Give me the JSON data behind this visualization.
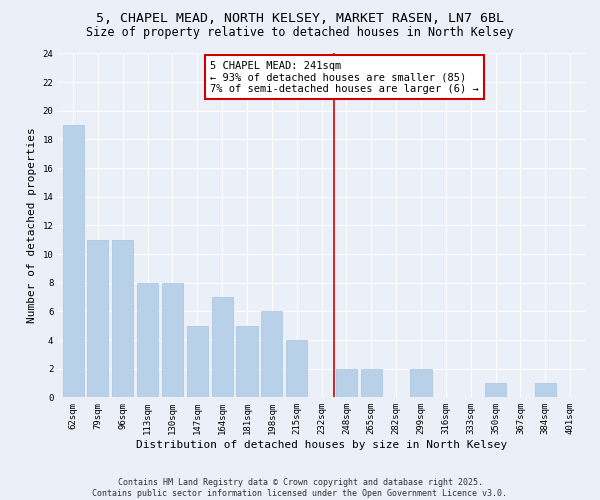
{
  "title1": "5, CHAPEL MEAD, NORTH KELSEY, MARKET RASEN, LN7 6BL",
  "title2": "Size of property relative to detached houses in North Kelsey",
  "xlabel": "Distribution of detached houses by size in North Kelsey",
  "ylabel": "Number of detached properties",
  "categories": [
    "62sqm",
    "79sqm",
    "96sqm",
    "113sqm",
    "130sqm",
    "147sqm",
    "164sqm",
    "181sqm",
    "198sqm",
    "215sqm",
    "232sqm",
    "248sqm",
    "265sqm",
    "282sqm",
    "299sqm",
    "316sqm",
    "333sqm",
    "350sqm",
    "367sqm",
    "384sqm",
    "401sqm"
  ],
  "values": [
    19,
    11,
    11,
    8,
    8,
    5,
    7,
    5,
    6,
    4,
    0,
    2,
    2,
    0,
    2,
    0,
    0,
    1,
    0,
    1,
    0
  ],
  "bar_color": "#b8d0e8",
  "bar_edge_color": "#a8c4de",
  "vline_color": "#cc0000",
  "annotation_text": "5 CHAPEL MEAD: 241sqm\n← 93% of detached houses are smaller (85)\n7% of semi-detached houses are larger (6) →",
  "annotation_box_color": "#ffffff",
  "annotation_box_edge": "#cc0000",
  "ylim": [
    0,
    24
  ],
  "yticks": [
    0,
    2,
    4,
    6,
    8,
    10,
    12,
    14,
    16,
    18,
    20,
    22,
    24
  ],
  "bg_color": "#eaeff8",
  "grid_color": "#ffffff",
  "footer": "Contains HM Land Registry data © Crown copyright and database right 2025.\nContains public sector information licensed under the Open Government Licence v3.0.",
  "title_fontsize": 9.5,
  "subtitle_fontsize": 8.5,
  "axis_label_fontsize": 8,
  "tick_fontsize": 6.5,
  "annotation_fontsize": 7.5,
  "footer_fontsize": 6
}
